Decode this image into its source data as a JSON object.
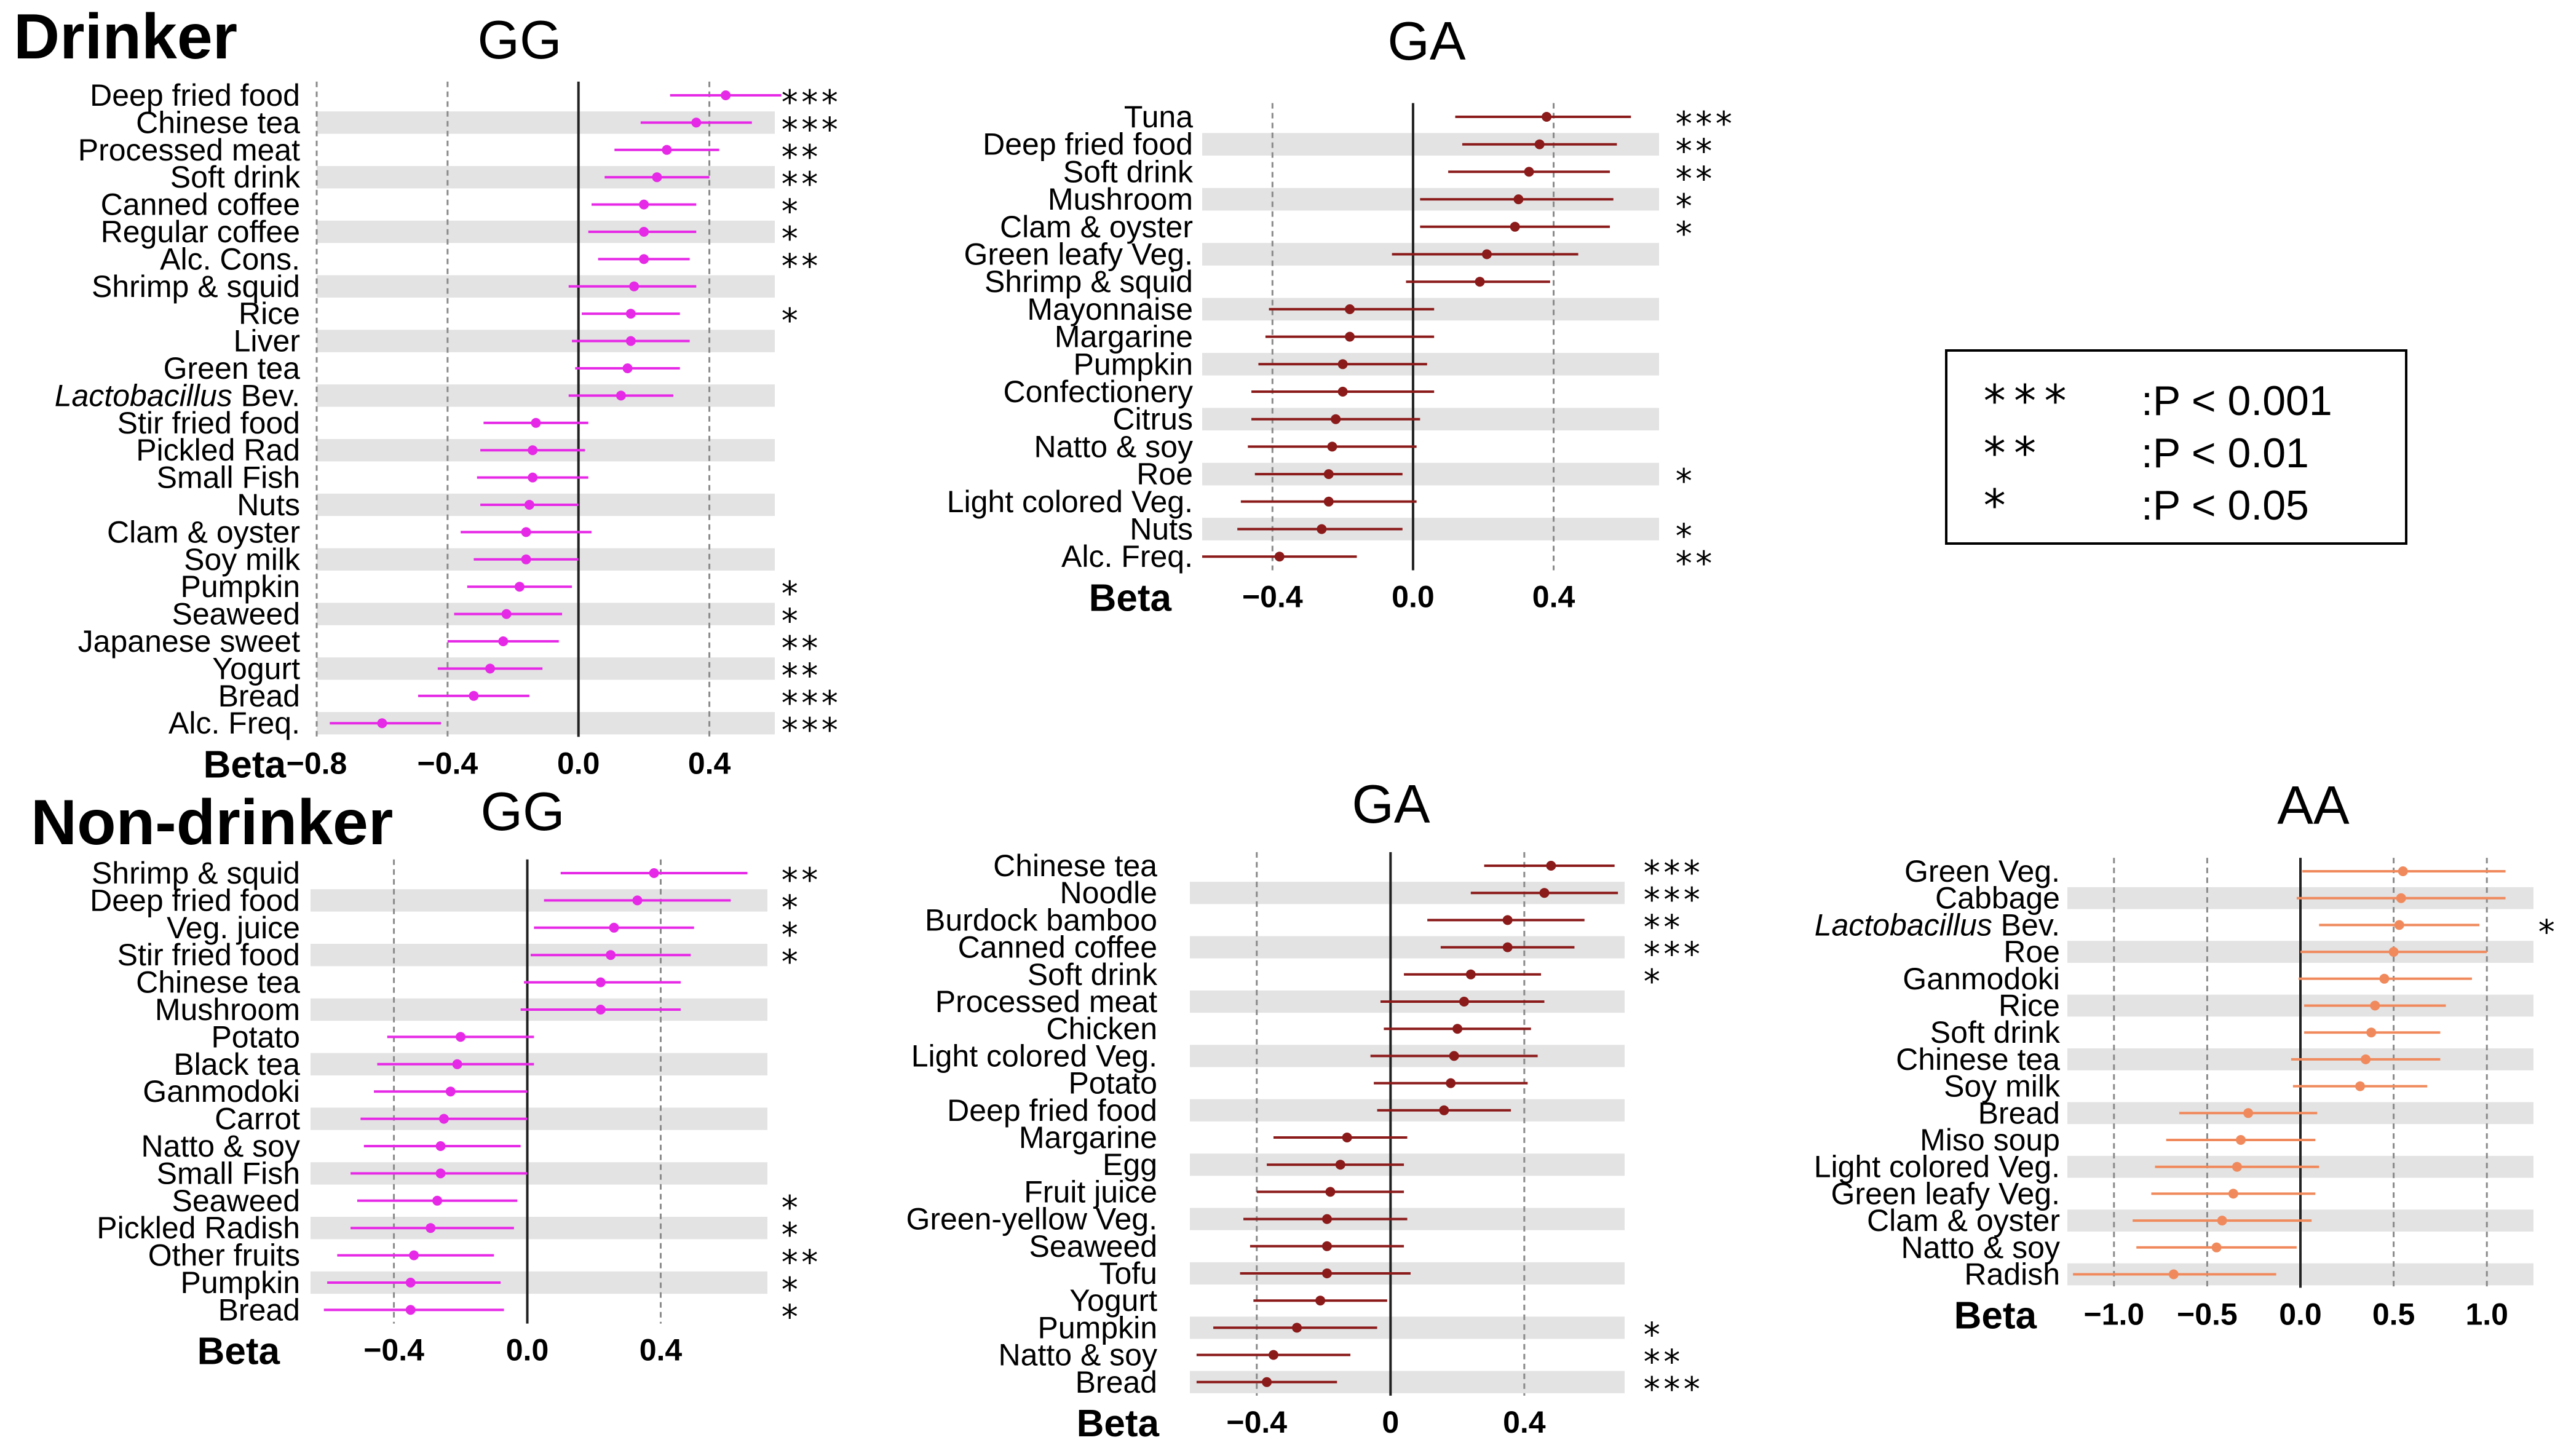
{
  "figure": {
    "sections": {
      "drinker": "Drinker",
      "non_drinker": "Non-drinker"
    },
    "axis_label": "Beta",
    "colors": {
      "magenta": "#e629e6",
      "darkred": "#8b1a1a",
      "orange": "#f08a5d",
      "band": "#e3e3e3",
      "zero_line": "#222222",
      "grid": "#8a8a8a"
    }
  },
  "legend": {
    "items": [
      {
        "stars": "***",
        "label": ":P < 0.001"
      },
      {
        "stars": "**",
        "label": ":P < 0.01"
      },
      {
        "stars": "*",
        "label": ":P < 0.05"
      }
    ]
  },
  "chart_data": [
    {
      "id": "drinker-gg",
      "type": "forest",
      "title": "GG",
      "color": "magenta",
      "xlim": [
        -0.8,
        0.6
      ],
      "ticks": [
        -0.8,
        -0.4,
        0.0,
        0.4
      ],
      "tick_labels": [
        "−0.8",
        "−0.4",
        "0.0",
        "0.4"
      ],
      "grid": [
        -0.8,
        -0.4,
        0.4
      ],
      "xlabel": "Beta",
      "rows": [
        {
          "label": "Deep fried food",
          "beta": 0.45,
          "lo": 0.28,
          "hi": 0.62,
          "sig": "***"
        },
        {
          "label": "Chinese tea",
          "beta": 0.36,
          "lo": 0.19,
          "hi": 0.53,
          "sig": "***"
        },
        {
          "label": "Processed meat",
          "beta": 0.27,
          "lo": 0.11,
          "hi": 0.43,
          "sig": "**"
        },
        {
          "label": "Soft drink",
          "beta": 0.24,
          "lo": 0.08,
          "hi": 0.4,
          "sig": "**"
        },
        {
          "label": "Canned coffee",
          "beta": 0.2,
          "lo": 0.04,
          "hi": 0.36,
          "sig": "*"
        },
        {
          "label": "Regular coffee",
          "beta": 0.2,
          "lo": 0.03,
          "hi": 0.36,
          "sig": "*"
        },
        {
          "label": "Alc. Cons.",
          "beta": 0.2,
          "lo": 0.06,
          "hi": 0.34,
          "sig": "**"
        },
        {
          "label": "Shrimp & squid",
          "beta": 0.17,
          "lo": -0.03,
          "hi": 0.36,
          "sig": ""
        },
        {
          "label": "Rice",
          "beta": 0.16,
          "lo": 0.01,
          "hi": 0.31,
          "sig": "*"
        },
        {
          "label": "Liver",
          "beta": 0.16,
          "lo": -0.02,
          "hi": 0.34,
          "sig": ""
        },
        {
          "label": "Green tea",
          "beta": 0.15,
          "lo": -0.01,
          "hi": 0.31,
          "sig": ""
        },
        {
          "label": "Lactobacillus Bev.",
          "beta": 0.13,
          "lo": -0.03,
          "hi": 0.29,
          "sig": "",
          "italic_prefix": "Lactobacillus"
        },
        {
          "label": "Stir fried food",
          "beta": -0.13,
          "lo": -0.29,
          "hi": 0.03,
          "sig": ""
        },
        {
          "label": "Pickled Rad",
          "beta": -0.14,
          "lo": -0.3,
          "hi": 0.02,
          "sig": ""
        },
        {
          "label": "Small Fish",
          "beta": -0.14,
          "lo": -0.31,
          "hi": 0.03,
          "sig": ""
        },
        {
          "label": "Nuts",
          "beta": -0.15,
          "lo": -0.3,
          "hi": 0.0,
          "sig": ""
        },
        {
          "label": "Clam & oyster",
          "beta": -0.16,
          "lo": -0.36,
          "hi": 0.04,
          "sig": ""
        },
        {
          "label": "Soy milk",
          "beta": -0.16,
          "lo": -0.32,
          "hi": 0.0,
          "sig": ""
        },
        {
          "label": "Pumpkin",
          "beta": -0.18,
          "lo": -0.34,
          "hi": -0.02,
          "sig": "*"
        },
        {
          "label": "Seaweed",
          "beta": -0.22,
          "lo": -0.38,
          "hi": -0.05,
          "sig": "*"
        },
        {
          "label": "Japanese sweet",
          "beta": -0.23,
          "lo": -0.4,
          "hi": -0.06,
          "sig": "**"
        },
        {
          "label": "Yogurt",
          "beta": -0.27,
          "lo": -0.43,
          "hi": -0.11,
          "sig": "**"
        },
        {
          "label": "Bread",
          "beta": -0.32,
          "lo": -0.49,
          "hi": -0.15,
          "sig": "***"
        },
        {
          "label": "Alc. Freq.",
          "beta": -0.6,
          "lo": -0.76,
          "hi": -0.42,
          "sig": "***"
        }
      ]
    },
    {
      "id": "drinker-ga",
      "type": "forest",
      "title": "GA",
      "color": "darkred",
      "xlim": [
        -0.6,
        0.7
      ],
      "ticks": [
        -0.4,
        0.0,
        0.4
      ],
      "tick_labels": [
        "−0.4",
        "0.0",
        "0.4"
      ],
      "grid": [
        -0.4,
        0.4
      ],
      "xlabel": "Beta",
      "rows": [
        {
          "label": "Tuna",
          "beta": 0.38,
          "lo": 0.12,
          "hi": 0.62,
          "sig": "***"
        },
        {
          "label": "Deep fried food",
          "beta": 0.36,
          "lo": 0.14,
          "hi": 0.58,
          "sig": "**"
        },
        {
          "label": "Soft drink",
          "beta": 0.33,
          "lo": 0.1,
          "hi": 0.56,
          "sig": "**"
        },
        {
          "label": "Mushroom",
          "beta": 0.3,
          "lo": 0.02,
          "hi": 0.57,
          "sig": "*"
        },
        {
          "label": "Clam & oyster",
          "beta": 0.29,
          "lo": 0.02,
          "hi": 0.56,
          "sig": "*"
        },
        {
          "label": "Green leafy Veg.",
          "beta": 0.21,
          "lo": -0.06,
          "hi": 0.47,
          "sig": ""
        },
        {
          "label": "Shrimp & squid",
          "beta": 0.19,
          "lo": -0.02,
          "hi": 0.39,
          "sig": ""
        },
        {
          "label": "Mayonnaise",
          "beta": -0.18,
          "lo": -0.41,
          "hi": 0.06,
          "sig": ""
        },
        {
          "label": "Margarine",
          "beta": -0.18,
          "lo": -0.42,
          "hi": 0.06,
          "sig": ""
        },
        {
          "label": "Pumpkin",
          "beta": -0.2,
          "lo": -0.44,
          "hi": 0.04,
          "sig": ""
        },
        {
          "label": "Confectionery",
          "beta": -0.2,
          "lo": -0.46,
          "hi": 0.06,
          "sig": ""
        },
        {
          "label": "Citrus",
          "beta": -0.22,
          "lo": -0.46,
          "hi": 0.02,
          "sig": ""
        },
        {
          "label": "Natto & soy",
          "beta": -0.23,
          "lo": -0.47,
          "hi": 0.01,
          "sig": ""
        },
        {
          "label": "Roe",
          "beta": -0.24,
          "lo": -0.45,
          "hi": -0.03,
          "sig": "*"
        },
        {
          "label": "Light colored Veg.",
          "beta": -0.24,
          "lo": -0.49,
          "hi": 0.01,
          "sig": ""
        },
        {
          "label": "Nuts",
          "beta": -0.26,
          "lo": -0.5,
          "hi": -0.03,
          "sig": "*"
        },
        {
          "label": "Alc. Freq.",
          "beta": -0.38,
          "lo": -0.6,
          "hi": -0.16,
          "sig": "**"
        }
      ]
    },
    {
      "id": "nondrinker-gg",
      "type": "forest",
      "title": "GG",
      "color": "magenta",
      "xlim": [
        -0.65,
        0.72
      ],
      "ticks": [
        -0.4,
        0.0,
        0.4
      ],
      "tick_labels": [
        "−0.4",
        "0.0",
        "0.4"
      ],
      "grid": [
        -0.4,
        0.4
      ],
      "xlabel": "Beta",
      "rows": [
        {
          "label": "Shrimp & squid",
          "beta": 0.38,
          "lo": 0.1,
          "hi": 0.66,
          "sig": "**"
        },
        {
          "label": "Deep fried food",
          "beta": 0.33,
          "lo": 0.05,
          "hi": 0.61,
          "sig": "*"
        },
        {
          "label": "Veg. juice",
          "beta": 0.26,
          "lo": 0.02,
          "hi": 0.5,
          "sig": "*"
        },
        {
          "label": "Stir fried food",
          "beta": 0.25,
          "lo": 0.01,
          "hi": 0.49,
          "sig": "*"
        },
        {
          "label": "Chinese tea",
          "beta": 0.22,
          "lo": -0.01,
          "hi": 0.46,
          "sig": ""
        },
        {
          "label": "Mushroom",
          "beta": 0.22,
          "lo": -0.02,
          "hi": 0.46,
          "sig": ""
        },
        {
          "label": "Potato",
          "beta": -0.2,
          "lo": -0.42,
          "hi": 0.02,
          "sig": ""
        },
        {
          "label": "Black tea",
          "beta": -0.21,
          "lo": -0.45,
          "hi": 0.02,
          "sig": ""
        },
        {
          "label": "Ganmodoki",
          "beta": -0.23,
          "lo": -0.46,
          "hi": 0.0,
          "sig": ""
        },
        {
          "label": "Carrot",
          "beta": -0.25,
          "lo": -0.5,
          "hi": 0.0,
          "sig": ""
        },
        {
          "label": "Natto & soy",
          "beta": -0.26,
          "lo": -0.49,
          "hi": -0.02,
          "sig": ""
        },
        {
          "label": "Small Fish",
          "beta": -0.26,
          "lo": -0.53,
          "hi": 0.0,
          "sig": ""
        },
        {
          "label": "Seaweed",
          "beta": -0.27,
          "lo": -0.51,
          "hi": -0.03,
          "sig": "*"
        },
        {
          "label": "Pickled Radish",
          "beta": -0.29,
          "lo": -0.53,
          "hi": -0.04,
          "sig": "*"
        },
        {
          "label": "Other fruits",
          "beta": -0.34,
          "lo": -0.57,
          "hi": -0.1,
          "sig": "**"
        },
        {
          "label": "Pumpkin",
          "beta": -0.35,
          "lo": -0.6,
          "hi": -0.08,
          "sig": "*"
        },
        {
          "label": "Bread",
          "beta": -0.35,
          "lo": -0.61,
          "hi": -0.07,
          "sig": "*"
        }
      ]
    },
    {
      "id": "nondrinker-ga",
      "type": "forest",
      "title": "GA",
      "color": "darkred",
      "xlim": [
        -0.6,
        0.7
      ],
      "ticks": [
        -0.4,
        0.0,
        0.4
      ],
      "tick_labels": [
        "−0.4",
        "0",
        "0.4"
      ],
      "grid": [
        -0.4,
        0.4
      ],
      "xlabel": "Beta",
      "rows": [
        {
          "label": "Chinese tea",
          "beta": 0.48,
          "lo": 0.28,
          "hi": 0.67,
          "sig": "***"
        },
        {
          "label": "Noodle",
          "beta": 0.46,
          "lo": 0.24,
          "hi": 0.68,
          "sig": "***"
        },
        {
          "label": "Burdock bamboo",
          "beta": 0.35,
          "lo": 0.11,
          "hi": 0.58,
          "sig": "**"
        },
        {
          "label": "Canned coffee",
          "beta": 0.35,
          "lo": 0.15,
          "hi": 0.55,
          "sig": "***"
        },
        {
          "label": "Soft drink",
          "beta": 0.24,
          "lo": 0.04,
          "hi": 0.45,
          "sig": "*"
        },
        {
          "label": "Processed meat",
          "beta": 0.22,
          "lo": -0.03,
          "hi": 0.46,
          "sig": ""
        },
        {
          "label": "Chicken",
          "beta": 0.2,
          "lo": -0.02,
          "hi": 0.42,
          "sig": ""
        },
        {
          "label": "Light colored Veg.",
          "beta": 0.19,
          "lo": -0.06,
          "hi": 0.44,
          "sig": ""
        },
        {
          "label": "Potato",
          "beta": 0.18,
          "lo": -0.05,
          "hi": 0.41,
          "sig": ""
        },
        {
          "label": "Deep fried food",
          "beta": 0.16,
          "lo": -0.04,
          "hi": 0.36,
          "sig": ""
        },
        {
          "label": "Margarine",
          "beta": -0.13,
          "lo": -0.35,
          "hi": 0.05,
          "sig": ""
        },
        {
          "label": "Egg",
          "beta": -0.15,
          "lo": -0.37,
          "hi": 0.04,
          "sig": ""
        },
        {
          "label": "Fruit juice",
          "beta": -0.18,
          "lo": -0.4,
          "hi": 0.04,
          "sig": ""
        },
        {
          "label": "Green-yellow Veg.",
          "beta": -0.19,
          "lo": -0.44,
          "hi": 0.05,
          "sig": ""
        },
        {
          "label": "Seaweed",
          "beta": -0.19,
          "lo": -0.42,
          "hi": 0.04,
          "sig": ""
        },
        {
          "label": "Tofu",
          "beta": -0.19,
          "lo": -0.45,
          "hi": 0.06,
          "sig": ""
        },
        {
          "label": "Yogurt",
          "beta": -0.21,
          "lo": -0.41,
          "hi": -0.01,
          "sig": ""
        },
        {
          "label": "Pumpkin",
          "beta": -0.28,
          "lo": -0.53,
          "hi": -0.04,
          "sig": "*"
        },
        {
          "label": "Natto & soy",
          "beta": -0.35,
          "lo": -0.58,
          "hi": -0.12,
          "sig": "**"
        },
        {
          "label": "Bread",
          "beta": -0.37,
          "lo": -0.58,
          "hi": -0.16,
          "sig": "***"
        }
      ]
    },
    {
      "id": "nondrinker-aa",
      "type": "forest",
      "title": "AA",
      "color": "orange",
      "xlim": [
        -1.25,
        1.25
      ],
      "ticks": [
        -1.0,
        -0.5,
        0.0,
        0.5,
        1.0
      ],
      "tick_labels": [
        "−1.0",
        "−0.5",
        "0.0",
        "0.5",
        "1.0"
      ],
      "grid": [
        -1.0,
        -0.5,
        0.5,
        1.0
      ],
      "xlabel": "Beta",
      "rows": [
        {
          "label": "Green Veg.",
          "beta": 0.55,
          "lo": 0.01,
          "hi": 1.1,
          "sig": ""
        },
        {
          "label": "Cabbage",
          "beta": 0.54,
          "lo": -0.02,
          "hi": 1.1,
          "sig": ""
        },
        {
          "label": "Lactobacillus Bev.",
          "beta": 0.53,
          "lo": 0.1,
          "hi": 0.96,
          "sig": "*",
          "italic_prefix": "Lactobacillus"
        },
        {
          "label": "Roe",
          "beta": 0.5,
          "lo": 0.0,
          "hi": 1.0,
          "sig": ""
        },
        {
          "label": "Ganmodoki",
          "beta": 0.45,
          "lo": -0.01,
          "hi": 0.92,
          "sig": ""
        },
        {
          "label": "Rice",
          "beta": 0.4,
          "lo": 0.02,
          "hi": 0.78,
          "sig": ""
        },
        {
          "label": "Soft drink",
          "beta": 0.38,
          "lo": 0.02,
          "hi": 0.75,
          "sig": ""
        },
        {
          "label": "Chinese tea",
          "beta": 0.35,
          "lo": -0.05,
          "hi": 0.75,
          "sig": ""
        },
        {
          "label": "Soy milk",
          "beta": 0.32,
          "lo": -0.04,
          "hi": 0.68,
          "sig": ""
        },
        {
          "label": "Bread",
          "beta": -0.28,
          "lo": -0.65,
          "hi": 0.09,
          "sig": ""
        },
        {
          "label": "Miso soup",
          "beta": -0.32,
          "lo": -0.72,
          "hi": 0.08,
          "sig": ""
        },
        {
          "label": "Light colored Veg.",
          "beta": -0.34,
          "lo": -0.78,
          "hi": 0.1,
          "sig": ""
        },
        {
          "label": "Green leafy Veg.",
          "beta": -0.36,
          "lo": -0.8,
          "hi": 0.08,
          "sig": ""
        },
        {
          "label": "Clam & oyster",
          "beta": -0.42,
          "lo": -0.9,
          "hi": 0.06,
          "sig": ""
        },
        {
          "label": "Natto & soy",
          "beta": -0.45,
          "lo": -0.88,
          "hi": -0.02,
          "sig": ""
        },
        {
          "label": "Radish",
          "beta": -0.68,
          "lo": -1.22,
          "hi": -0.13,
          "sig": ""
        }
      ]
    }
  ]
}
